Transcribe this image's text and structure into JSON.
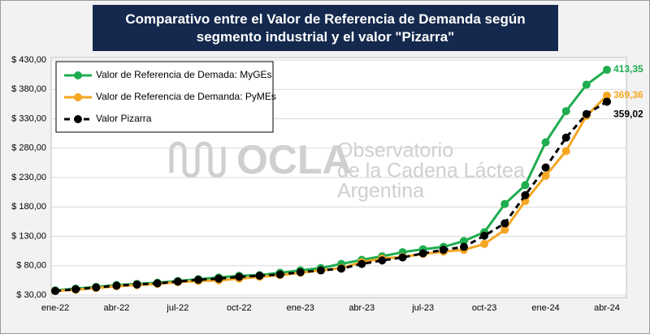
{
  "chart_data": {
    "type": "line",
    "title": "Comparativo entre el Valor de Referencia de Demanda según segmento industrial y el valor \"Pizarra\"",
    "watermark": {
      "logo": "OCLA",
      "lines": [
        "Observatorio",
        "de la Cadena Láctea",
        "Argentina"
      ]
    },
    "categories": [
      "ene-22",
      null,
      null,
      "abr-22",
      null,
      null,
      "jul-22",
      null,
      null,
      "oct-22",
      null,
      null,
      "ene-23",
      null,
      null,
      "abr-23",
      null,
      null,
      "jul-23",
      null,
      null,
      "oct-23",
      null,
      null,
      "ene-24",
      null,
      null,
      "abr-24"
    ],
    "series": [
      {
        "name": "Valor de Referencia de Demada: MyGEs",
        "color": "#1fad4f",
        "dash": false,
        "values": [
          38,
          41,
          44,
          47,
          49,
          51,
          54,
          57,
          60,
          63,
          64,
          68,
          72,
          76,
          83,
          90,
          96,
          103,
          108,
          112,
          122,
          137,
          185,
          217,
          290,
          343,
          388,
          413.35
        ],
        "value_labels": {
          "27": "413,35"
        }
      },
      {
        "name": "Valor de Referencia de Demanda: PyMEs",
        "color": "#f5a623",
        "dash": false,
        "values": [
          37,
          39,
          42,
          45,
          47,
          49,
          52,
          54,
          55,
          58,
          61,
          64,
          68,
          72,
          76,
          86,
          92,
          95,
          100,
          104,
          107,
          117,
          141,
          190,
          233,
          275,
          335,
          369.36
        ],
        "value_labels": {
          "27": "369,36"
        }
      },
      {
        "name": "Valor Pizarra",
        "color": "#000000",
        "dash": true,
        "values": [
          37,
          40,
          43,
          46,
          48,
          50,
          53,
          56,
          58,
          61,
          63,
          65,
          69,
          72,
          75,
          83,
          89,
          94,
          101,
          107,
          112,
          131,
          152,
          200,
          247,
          298,
          338,
          359.02
        ],
        "value_labels": {
          "27": "359,02"
        }
      }
    ],
    "ylim": [
      30,
      430
    ],
    "yticks": [
      {
        "value": 30,
        "label": "$ 30,00"
      },
      {
        "value": 80,
        "label": "$ 80,00"
      },
      {
        "value": 130,
        "label": "$ 130,00"
      },
      {
        "value": 180,
        "label": "$ 180,00"
      },
      {
        "value": 230,
        "label": "$ 230,00"
      },
      {
        "value": 280,
        "label": "$ 280,00"
      },
      {
        "value": 330,
        "label": "$ 330,00"
      },
      {
        "value": 380,
        "label": "$ 380,00"
      },
      {
        "value": 430,
        "label": "$ 430,00"
      }
    ],
    "grid": true,
    "legend": "upper left"
  }
}
